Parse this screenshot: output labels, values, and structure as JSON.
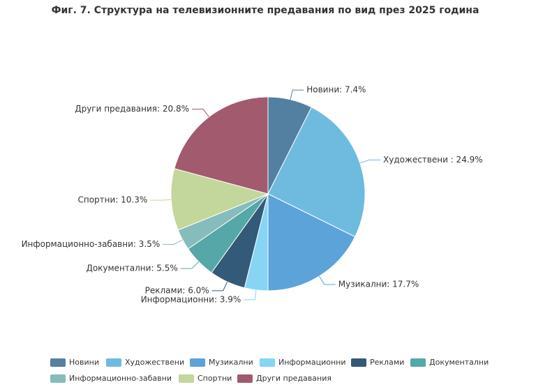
{
  "chart_data": {
    "type": "pie",
    "title": "Фиг. 7. Структура на телевизионните предавания по вид през 2025 година",
    "categories": [
      "Новини",
      "Художествени",
      "Музикални",
      "Информационни",
      "Реклами",
      "Документални",
      "Информационно-забавни",
      "Спортни",
      "Други предавания"
    ],
    "values": [
      7.4,
      24.9,
      17.7,
      3.9,
      6.0,
      5.5,
      3.5,
      10.3,
      20.8
    ],
    "value_labels": [
      "Новини: 7.4%",
      "Художествени : 24.9%",
      "Музикални: 17.7%",
      "Информационни: 3.9%",
      "Реклами: 6.0%",
      "Документални: 5.5%",
      "Информационно-забавни: 3.5%",
      "Спортни: 10.3%",
      "Други предавания: 20.8%"
    ],
    "colors": [
      "#537fa0",
      "#6fbbe0",
      "#5ba3d9",
      "#87d4f5",
      "#335a78",
      "#56a7a7",
      "#86bcbc",
      "#c3d69b",
      "#a25a6e"
    ],
    "legend": "bottom"
  }
}
